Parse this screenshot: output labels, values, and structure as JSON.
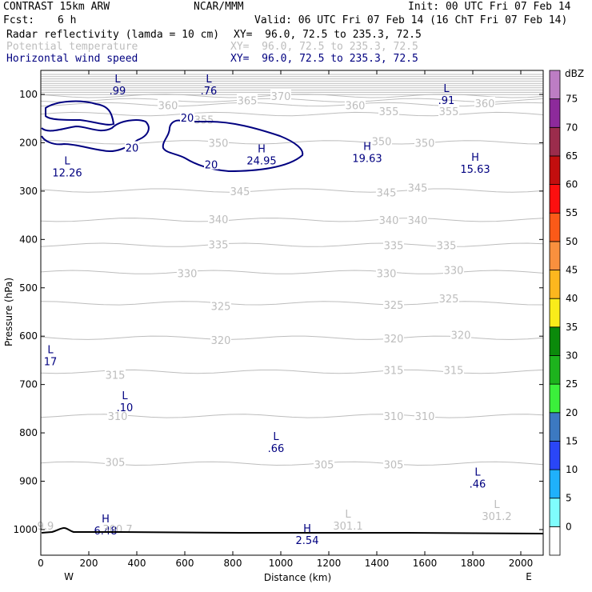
{
  "header": {
    "title_left": "CONTRAST 15km ARW",
    "title_center": "NCAR/MMM",
    "init": "Init: 00 UTC Fri 07 Feb 14",
    "fcst_label": "Fcst:",
    "fcst_value": "6 h",
    "valid": "Valid: 06 UTC Fri 07 Feb 14 (16 ChT Fri 07 Feb 14)",
    "fields": [
      {
        "name": "Radar reflectivity (lamda = 10 cm)",
        "xy": "XY=  96.0, 72.5 to 235.3, 72.5",
        "color": "#000000"
      },
      {
        "name": "Potential temperature",
        "xy": "XY=  96.0, 72.5 to 235.3, 72.5",
        "color": "#bdbdbd"
      },
      {
        "name": "Horizontal wind speed",
        "xy": "XY=  96.0, 72.5 to 235.3, 72.5",
        "color": "#000080"
      }
    ]
  },
  "colorbar": {
    "unit": "dBZ",
    "levels": [
      "0",
      "5",
      "10",
      "15",
      "20",
      "25",
      "30",
      "35",
      "40",
      "45",
      "50",
      "55",
      "60",
      "65",
      "70",
      "75"
    ],
    "colors": [
      "#ffffff",
      "#7ffdfd",
      "#1fb1fb",
      "#2a46f7",
      "#3c79c1",
      "#3bf03b",
      "#1db31d",
      "#0b8a0b",
      "#f9ec1a",
      "#fdb71e",
      "#f9903e",
      "#fb5a18",
      "#fc0f0f",
      "#c20e0e",
      "#9b2c4c",
      "#8d2a9b",
      "#bd7dc4"
    ]
  },
  "colors": {
    "theta": "#bdbdbd",
    "wind": "#000080",
    "terrain": "#000000"
  },
  "chart_data": {
    "type": "contour-cross-section",
    "xlabel": "Distance (km)",
    "ylabel": "Pressure (hPa)",
    "xlim": [
      0,
      2090
    ],
    "ylim_hpa": [
      1050,
      50
    ],
    "x_ticks": [
      "0",
      "200",
      "400",
      "600",
      "800",
      "1000",
      "1200",
      "1400",
      "1600",
      "1800",
      "2000"
    ],
    "y_ticks": [
      "100",
      "200",
      "300",
      "400",
      "500",
      "600",
      "700",
      "800",
      "900",
      "1000"
    ],
    "x_end_labels": {
      "left": "W",
      "right": "E"
    },
    "theta_contours": [
      {
        "value": 305,
        "labels": [
          {
            "text": "305",
            "x": 310,
            "p": 860
          },
          {
            "text": "305",
            "x": 1180,
            "p": 865
          },
          {
            "text": "305",
            "x": 1470,
            "p": 865
          }
        ]
      },
      {
        "value": 310,
        "labels": [
          {
            "text": "310",
            "x": 320,
            "p": 765
          },
          {
            "text": "310",
            "x": 1470,
            "p": 765
          },
          {
            "text": "310",
            "x": 1600,
            "p": 765
          }
        ]
      },
      {
        "value": 315,
        "labels": [
          {
            "text": "315",
            "x": 310,
            "p": 680
          },
          {
            "text": "315",
            "x": 1470,
            "p": 670
          },
          {
            "text": "315",
            "x": 1720,
            "p": 670
          }
        ]
      },
      {
        "value": 320,
        "labels": [
          {
            "text": "320",
            "x": 750,
            "p": 608
          },
          {
            "text": "320",
            "x": 1470,
            "p": 605
          },
          {
            "text": "320",
            "x": 1750,
            "p": 597
          }
        ]
      },
      {
        "value": 325,
        "labels": [
          {
            "text": "325",
            "x": 750,
            "p": 538
          },
          {
            "text": "325",
            "x": 1470,
            "p": 535
          },
          {
            "text": "325",
            "x": 1700,
            "p": 522
          }
        ]
      },
      {
        "value": 330,
        "labels": [
          {
            "text": "330",
            "x": 610,
            "p": 470
          },
          {
            "text": "330",
            "x": 1440,
            "p": 470
          },
          {
            "text": "330",
            "x": 1720,
            "p": 463
          }
        ]
      },
      {
        "value": 335,
        "labels": [
          {
            "text": "335",
            "x": 740,
            "p": 410
          },
          {
            "text": "335",
            "x": 1470,
            "p": 412
          },
          {
            "text": "335",
            "x": 1690,
            "p": 412
          }
        ]
      },
      {
        "value": 340,
        "labels": [
          {
            "text": "340",
            "x": 740,
            "p": 358
          },
          {
            "text": "340",
            "x": 1450,
            "p": 360
          },
          {
            "text": "340",
            "x": 1570,
            "p": 360
          }
        ]
      },
      {
        "value": 345,
        "labels": [
          {
            "text": "345",
            "x": 830,
            "p": 300
          },
          {
            "text": "345",
            "x": 1440,
            "p": 303
          },
          {
            "text": "345",
            "x": 1570,
            "p": 293
          }
        ]
      },
      {
        "value": 350,
        "labels": [
          {
            "text": "350",
            "x": 740,
            "p": 200
          },
          {
            "text": "350",
            "x": 1420,
            "p": 197
          },
          {
            "text": "350",
            "x": 1600,
            "p": 200
          }
        ]
      },
      {
        "value": 355,
        "labels": [
          {
            "text": "355",
            "x": 680,
            "p": 152
          },
          {
            "text": "355",
            "x": 1450,
            "p": 135
          },
          {
            "text": "355",
            "x": 1700,
            "p": 135
          }
        ]
      },
      {
        "value": 360,
        "labels": [
          {
            "text": "360",
            "x": 530,
            "p": 122
          },
          {
            "text": "360",
            "x": 1310,
            "p": 122
          },
          {
            "text": "360",
            "x": 1850,
            "p": 118
          }
        ]
      },
      {
        "value": 365,
        "labels": [
          {
            "text": "365",
            "x": 860,
            "p": 112
          }
        ]
      },
      {
        "value": 370,
        "labels": [
          {
            "text": "370",
            "x": 1000,
            "p": 103
          }
        ]
      }
    ],
    "theta_extrema": [
      {
        "type": "L",
        "value": "301.1",
        "x": 1280,
        "p": 1000
      },
      {
        "type": "L",
        "value": "301.2",
        "x": 1900,
        "p": 980
      },
      {
        "type": "",
        "value": "300.7",
        "x": 320,
        "p": 1007
      },
      {
        "type": "",
        "value": "9.9",
        "x": 20,
        "p": 1000
      }
    ],
    "wind_contours": [
      {
        "value": 20,
        "labels": [
          {
            "text": "20",
            "x": 610,
            "p": 148
          },
          {
            "text": "20",
            "x": 380,
            "p": 210
          },
          {
            "text": "20",
            "x": 710,
            "p": 245
          }
        ]
      }
    ],
    "wind_extrema": [
      {
        "type": "L",
        "value": ".99",
        "x": 320,
        "p": 75
      },
      {
        "type": "L",
        "value": ".76",
        "x": 700,
        "p": 75
      },
      {
        "type": "L",
        "value": ".91",
        "x": 1690,
        "p": 95
      },
      {
        "type": "L",
        "value": "12.26",
        "x": 110,
        "p": 245
      },
      {
        "type": "H",
        "value": "24.95",
        "x": 920,
        "p": 220
      },
      {
        "type": "H",
        "value": "19.63",
        "x": 1360,
        "p": 215
      },
      {
        "type": "H",
        "value": "15.63",
        "x": 1810,
        "p": 237
      },
      {
        "type": "L",
        "value": "17",
        "x": 40,
        "p": 635
      },
      {
        "type": "L",
        "value": ".10",
        "x": 350,
        "p": 730
      },
      {
        "type": "L",
        "value": ".66",
        "x": 980,
        "p": 815
      },
      {
        "type": "L",
        "value": ".46",
        "x": 1820,
        "p": 888
      },
      {
        "type": "H",
        "value": "6.48",
        "x": 270,
        "p": 985
      },
      {
        "type": "H",
        "value": "2.54",
        "x": 1110,
        "p": 1005
      }
    ]
  }
}
